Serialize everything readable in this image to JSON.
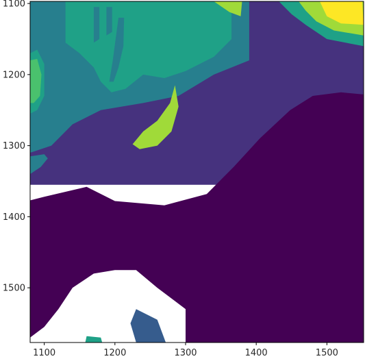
{
  "chart_data": {
    "type": "heatmap",
    "title": "",
    "xlabel": "",
    "ylabel": "",
    "xlim": [
      1080,
      1552
    ],
    "ylim": [
      1577,
      1097
    ],
    "y_inverted": true,
    "x_ticks": [
      1100,
      1200,
      1300,
      1400,
      1500
    ],
    "y_ticks": [
      1100,
      1200,
      1300,
      1400,
      1500
    ],
    "colormap": "viridis",
    "levels": [
      {
        "level": 0,
        "color": "#440154"
      },
      {
        "level": 1,
        "color": "#46327e"
      },
      {
        "level": 2,
        "color": "#365c8d"
      },
      {
        "level": 3,
        "color": "#277f8e"
      },
      {
        "level": 4,
        "color": "#1fa187"
      },
      {
        "level": 5,
        "color": "#4ac16d"
      },
      {
        "level": 6,
        "color": "#a0da39"
      },
      {
        "level": 7,
        "color": "#fde725"
      }
    ],
    "regions": [
      {
        "level": 1,
        "points": [
          [
            1080,
            1097
          ],
          [
            1552,
            1097
          ],
          [
            1552,
            1355
          ],
          [
            1080,
            1355
          ]
        ]
      },
      {
        "level": 3,
        "points": [
          [
            1080,
            1097
          ],
          [
            1390,
            1097
          ],
          [
            1390,
            1180
          ],
          [
            1340,
            1200
          ],
          [
            1290,
            1230
          ],
          [
            1240,
            1240
          ],
          [
            1180,
            1250
          ],
          [
            1140,
            1270
          ],
          [
            1110,
            1300
          ],
          [
            1080,
            1310
          ]
        ]
      },
      {
        "level": 3,
        "points": [
          [
            1080,
            1315
          ],
          [
            1100,
            1312
          ],
          [
            1105,
            1318
          ],
          [
            1095,
            1330
          ],
          [
            1080,
            1340
          ]
        ]
      },
      {
        "level": 4,
        "points": [
          [
            1130,
            1097
          ],
          [
            1365,
            1097
          ],
          [
            1365,
            1150
          ],
          [
            1340,
            1175
          ],
          [
            1300,
            1195
          ],
          [
            1270,
            1205
          ],
          [
            1240,
            1200
          ],
          [
            1215,
            1220
          ],
          [
            1195,
            1225
          ],
          [
            1180,
            1210
          ],
          [
            1170,
            1190
          ],
          [
            1150,
            1170
          ],
          [
            1130,
            1155
          ]
        ]
      },
      {
        "level": 4,
        "points": [
          [
            1080,
            1170
          ],
          [
            1090,
            1165
          ],
          [
            1100,
            1185
          ],
          [
            1100,
            1230
          ],
          [
            1090,
            1250
          ],
          [
            1080,
            1255
          ]
        ]
      },
      {
        "level": 3,
        "points": [
          [
            1170,
            1105
          ],
          [
            1178,
            1105
          ],
          [
            1178,
            1150
          ],
          [
            1170,
            1155
          ]
        ]
      },
      {
        "level": 3,
        "points": [
          [
            1188,
            1105
          ],
          [
            1196,
            1105
          ],
          [
            1196,
            1140
          ],
          [
            1188,
            1145
          ]
        ]
      },
      {
        "level": 3,
        "points": [
          [
            1205,
            1120
          ],
          [
            1213,
            1120
          ],
          [
            1212,
            1160
          ],
          [
            1205,
            1190
          ],
          [
            1198,
            1210
          ],
          [
            1192,
            1210
          ],
          [
            1197,
            1180
          ]
        ]
      },
      {
        "level": 5,
        "points": [
          [
            1080,
            1180
          ],
          [
            1090,
            1178
          ],
          [
            1096,
            1200
          ],
          [
            1094,
            1230
          ],
          [
            1085,
            1240
          ],
          [
            1080,
            1240
          ]
        ]
      },
      {
        "level": 6,
        "points": [
          [
            1285,
            1215
          ],
          [
            1290,
            1245
          ],
          [
            1280,
            1280
          ],
          [
            1260,
            1300
          ],
          [
            1235,
            1305
          ],
          [
            1225,
            1298
          ],
          [
            1240,
            1280
          ],
          [
            1260,
            1265
          ],
          [
            1278,
            1240
          ]
        ]
      },
      {
        "level": 0,
        "points": [
          [
            1080,
            1377
          ],
          [
            1100,
            1372
          ],
          [
            1160,
            1358
          ],
          [
            1200,
            1378
          ],
          [
            1270,
            1384
          ],
          [
            1330,
            1368
          ],
          [
            1368,
            1330
          ],
          [
            1405,
            1290
          ],
          [
            1448,
            1250
          ],
          [
            1480,
            1230
          ],
          [
            1520,
            1225
          ],
          [
            1552,
            1228
          ],
          [
            1552,
            1577
          ],
          [
            1300,
            1577
          ],
          [
            1300,
            1530
          ],
          [
            1260,
            1500
          ],
          [
            1230,
            1475
          ],
          [
            1200,
            1475
          ],
          [
            1170,
            1480
          ],
          [
            1140,
            1500
          ],
          [
            1120,
            1530
          ],
          [
            1100,
            1555
          ],
          [
            1080,
            1570
          ]
        ]
      },
      {
        "level": 2,
        "points": [
          [
            1230,
            1530
          ],
          [
            1260,
            1545
          ],
          [
            1272,
            1577
          ],
          [
            1230,
            1577
          ],
          [
            1222,
            1550
          ]
        ]
      },
      {
        "level": 4,
        "points": [
          [
            1160,
            1568
          ],
          [
            1180,
            1570
          ],
          [
            1182,
            1577
          ],
          [
            1158,
            1577
          ]
        ]
      },
      {
        "level": 6,
        "points": [
          [
            1340,
            1097
          ],
          [
            1380,
            1097
          ],
          [
            1378,
            1118
          ],
          [
            1362,
            1112
          ]
        ]
      },
      {
        "level": 4,
        "points": [
          [
            1432,
            1097
          ],
          [
            1552,
            1097
          ],
          [
            1552,
            1160
          ],
          [
            1500,
            1150
          ],
          [
            1470,
            1130
          ],
          [
            1450,
            1115
          ]
        ]
      },
      {
        "level": 6,
        "points": [
          [
            1460,
            1097
          ],
          [
            1552,
            1097
          ],
          [
            1552,
            1145
          ],
          [
            1510,
            1138
          ],
          [
            1485,
            1125
          ],
          [
            1470,
            1110
          ]
        ]
      },
      {
        "level": 7,
        "points": [
          [
            1490,
            1097
          ],
          [
            1550,
            1097
          ],
          [
            1552,
            1130
          ],
          [
            1520,
            1128
          ],
          [
            1500,
            1118
          ]
        ]
      }
    ]
  }
}
